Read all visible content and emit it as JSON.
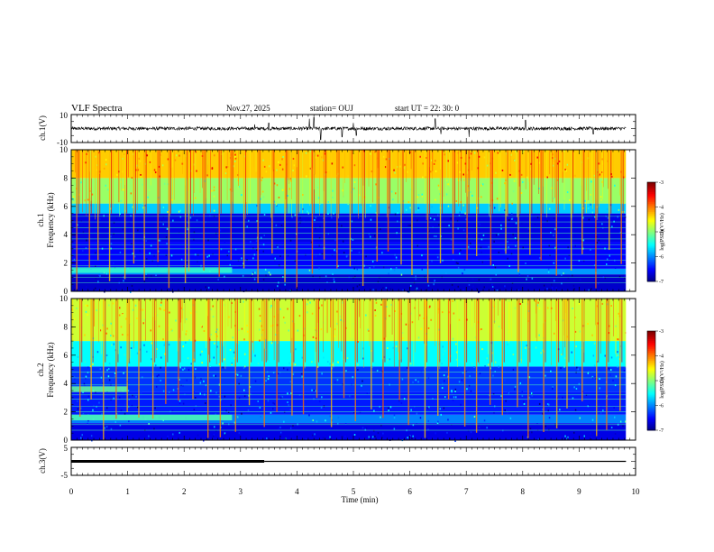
{
  "header": {
    "title": "VLF Spectra",
    "date": "Nov.27, 2025",
    "station": "station= OUJ",
    "start": "start  UT =   22: 30: 0"
  },
  "chart_data": [
    {
      "type": "line",
      "name": "ch1-waveform",
      "ylabel": "ch.1(V)",
      "ylim": [
        -10,
        10
      ],
      "yticks": [
        "10",
        "-10"
      ],
      "x_range_min": [
        0,
        9.83
      ],
      "baseline": 0,
      "noise_amplitude": 2,
      "spikes": [
        {
          "t": 3.25,
          "v": 3
        },
        {
          "t": 3.5,
          "v": 4
        },
        {
          "t": 4.22,
          "v": 7
        },
        {
          "t": 4.3,
          "v": 8
        },
        {
          "t": 4.42,
          "v": -8
        },
        {
          "t": 4.8,
          "v": -6
        },
        {
          "t": 5.0,
          "v": 4
        },
        {
          "t": 5.05,
          "v": -5
        },
        {
          "t": 6.45,
          "v": 7
        },
        {
          "t": 6.55,
          "v": -4
        },
        {
          "t": 7.05,
          "v": -6
        },
        {
          "t": 8.05,
          "v": 6
        },
        {
          "t": 9.25,
          "v": -4
        }
      ]
    },
    {
      "type": "heatmap",
      "name": "ch1-spectrogram",
      "ylabel_top": "ch.1",
      "ylabel": "Frequency (kHz)",
      "ylim": [
        0,
        10
      ],
      "yticks": [
        "0",
        "2",
        "4",
        "6",
        "8",
        "10"
      ],
      "x_range_min": [
        0,
        9.83
      ],
      "colorbar": {
        "label": "log(PSD)(V²/Hz)",
        "min": -7,
        "max": -3,
        "ticks": [
          "-3",
          "-4",
          "-5",
          "-6",
          "-7"
        ]
      },
      "background_by_freq": [
        {
          "f0": 0,
          "f1": 1.2,
          "v": -6.7
        },
        {
          "f0": 1.2,
          "f1": 1.6,
          "v": -5.9
        },
        {
          "f0": 1.6,
          "f1": 3.5,
          "v": -6.5
        },
        {
          "f0": 3.5,
          "f1": 5.5,
          "v": -6.6
        },
        {
          "f0": 5.5,
          "f1": 6.2,
          "v": -5.7
        },
        {
          "f0": 6.2,
          "f1": 8.0,
          "v": -4.9
        },
        {
          "f0": 8.0,
          "f1": 10,
          "v": -4.3
        }
      ],
      "horizontal_tones_kHz": [
        0.6,
        1.0,
        1.8,
        2.2,
        2.6,
        3.0,
        3.3,
        3.7,
        4.1,
        4.5,
        4.9,
        5.3
      ],
      "features": [
        {
          "f0": 1.3,
          "f1": 1.7,
          "t0": 0,
          "t1": 2.85,
          "v": -5.3
        }
      ],
      "sferic_times_min": [
        0.1,
        0.3,
        0.45,
        0.7,
        0.95,
        1.1,
        1.3,
        1.55,
        1.75,
        2.0,
        2.1,
        2.35,
        2.6,
        2.85,
        3.05,
        3.3,
        3.55,
        3.8,
        4.0,
        4.25,
        4.5,
        4.7,
        4.95,
        5.15,
        5.4,
        5.6,
        5.85,
        6.05,
        6.3,
        6.55,
        6.75,
        7.0,
        7.2,
        7.45,
        7.7,
        7.9,
        8.15,
        8.35,
        8.6,
        8.85,
        9.05,
        9.3,
        9.55,
        9.75
      ]
    },
    {
      "type": "heatmap",
      "name": "ch2-spectrogram",
      "ylabel_top": "ch.2",
      "ylabel": "Frequency (kHz)",
      "ylim": [
        0,
        10
      ],
      "yticks": [
        "0",
        "2",
        "4",
        "6",
        "8",
        "10"
      ],
      "x_range_min": [
        0,
        9.83
      ],
      "colorbar": {
        "label": "log(PSD)(V²/Hz)",
        "min": -7,
        "max": -3,
        "ticks": [
          "-3",
          "-4",
          "-5",
          "-6",
          "-7"
        ]
      },
      "background_by_freq": [
        {
          "f0": 0,
          "f1": 1.2,
          "v": -6.6
        },
        {
          "f0": 1.2,
          "f1": 1.8,
          "v": -6.0
        },
        {
          "f0": 1.8,
          "f1": 3.4,
          "v": -6.4
        },
        {
          "f0": 3.4,
          "f1": 5.2,
          "v": -6.3
        },
        {
          "f0": 5.2,
          "f1": 7.0,
          "v": -5.5
        },
        {
          "f0": 7.0,
          "f1": 10,
          "v": -4.7
        }
      ],
      "horizontal_tones_kHz": [
        0.7,
        1.1,
        2.0,
        2.4,
        2.9,
        3.2,
        3.9,
        4.4,
        4.8
      ],
      "features": [
        {
          "f0": 3.4,
          "f1": 3.8,
          "t0": 0,
          "t1": 1.0,
          "v": -5.1
        },
        {
          "f0": 1.4,
          "f1": 1.8,
          "t0": 0,
          "t1": 2.85,
          "v": -5.2
        }
      ],
      "sferic_times_min": [
        0.15,
        0.35,
        0.55,
        0.8,
        1.0,
        1.2,
        1.45,
        1.65,
        1.9,
        2.15,
        2.4,
        2.65,
        2.9,
        3.15,
        3.4,
        3.65,
        3.9,
        4.1,
        4.35,
        4.6,
        4.85,
        5.05,
        5.3,
        5.55,
        5.8,
        6.0,
        6.25,
        6.5,
        6.7,
        6.95,
        7.2,
        7.4,
        7.65,
        7.9,
        8.1,
        8.35,
        8.6,
        8.8,
        9.05,
        9.3,
        9.5,
        9.75
      ]
    },
    {
      "type": "line",
      "name": "ch3-waveform",
      "ylabel": "ch.3(V)",
      "ylim": [
        -5,
        5
      ],
      "yticks": [
        "5",
        "-5"
      ],
      "series": [
        {
          "x": [
            0,
            3.42
          ],
          "y": [
            0,
            0
          ],
          "style": "thick"
        },
        {
          "x": [
            3.42,
            9.83
          ],
          "y": [
            0,
            0
          ],
          "style": "thin"
        }
      ]
    }
  ],
  "xaxis": {
    "label": "Time (min)",
    "ticks": [
      "0",
      "1",
      "2",
      "3",
      "4",
      "5",
      "6",
      "7",
      "8",
      "9",
      "10"
    ],
    "range": [
      0,
      10
    ]
  }
}
